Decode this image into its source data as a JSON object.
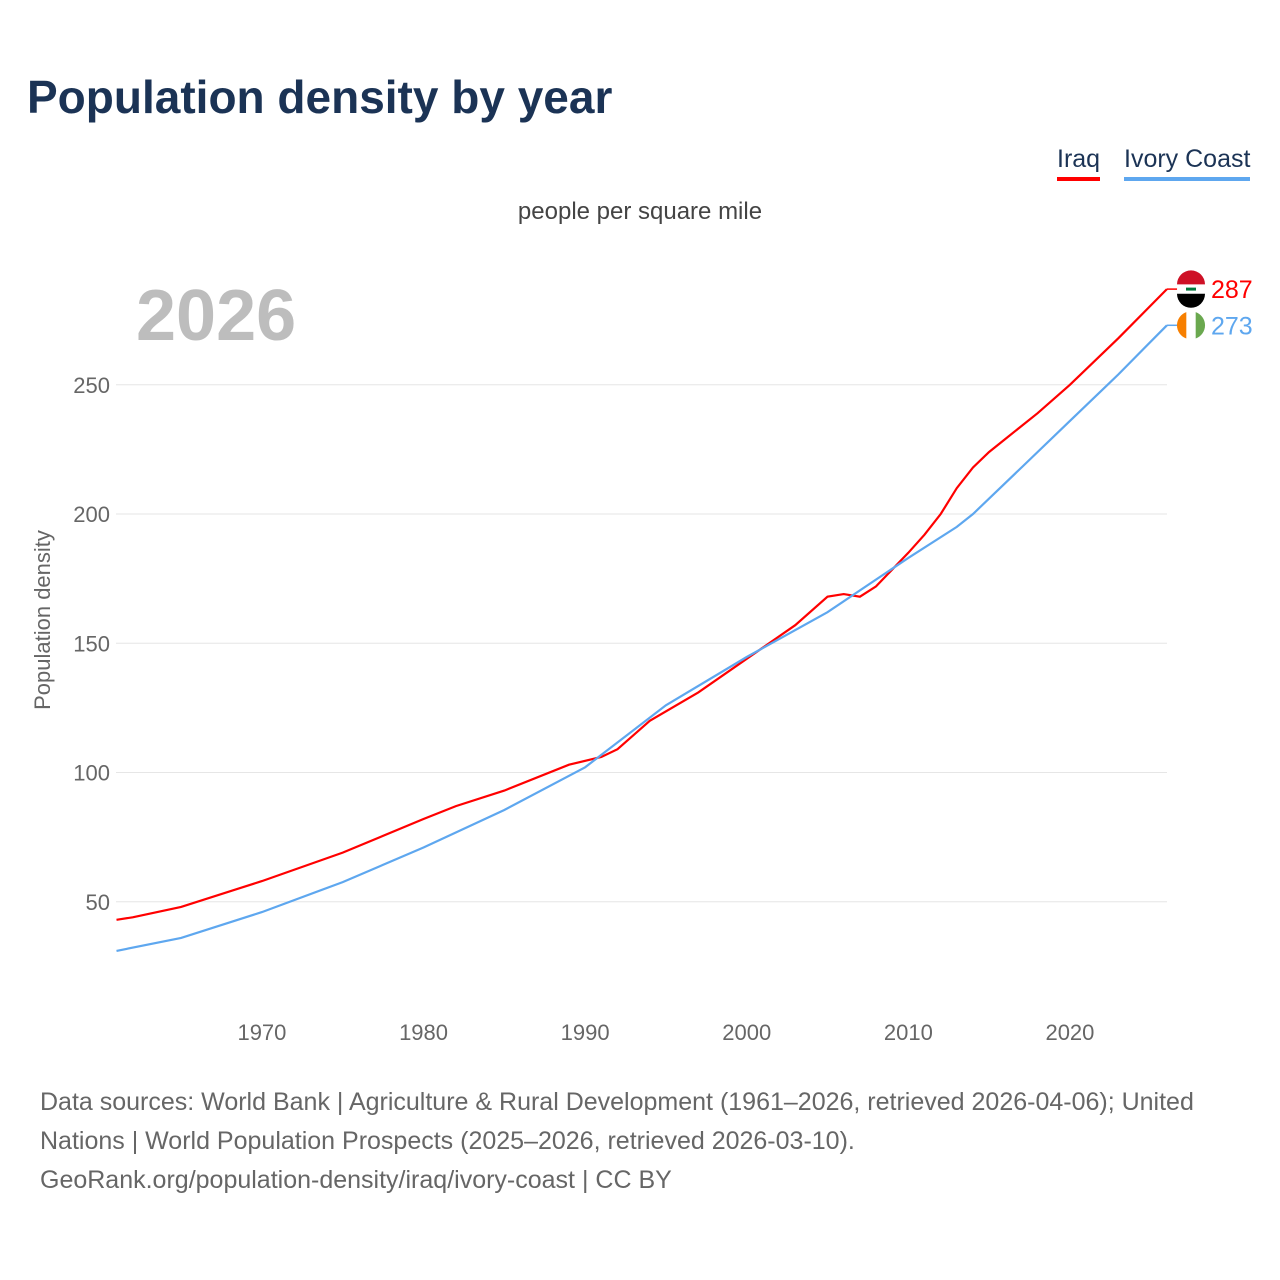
{
  "title": "Population density by year",
  "subtitle": "people per square mile",
  "current_year": "2026",
  "legend": [
    {
      "name": "Iraq",
      "color": "#ff0000"
    },
    {
      "name": "Ivory Coast",
      "color": "#5ea7ef"
    }
  ],
  "footer": {
    "line1": "Data sources: World Bank | Agriculture & Rural Development (1961–2026, retrieved 2026-04-06); United Nations | World Population Prospects (2025–2026, retrieved 2026-03-10).",
    "line2": "GeoRank.org/population-density/iraq/ivory-coast | CC BY"
  },
  "chart_data": {
    "type": "line",
    "title": "Population density by year",
    "ylabel": "Population density",
    "xlabel": "",
    "xlim": [
      1961,
      2026
    ],
    "ylim": [
      0,
      290
    ],
    "x_ticks": [
      1970,
      1980,
      1990,
      2000,
      2010,
      2020
    ],
    "y_ticks": [
      50,
      100,
      150,
      200,
      250
    ],
    "series": [
      {
        "name": "Iraq",
        "color": "#ff0000",
        "end_label": "287",
        "points": [
          [
            1961,
            43
          ],
          [
            1962,
            44
          ],
          [
            1965,
            48
          ],
          [
            1970,
            58
          ],
          [
            1975,
            69
          ],
          [
            1980,
            82
          ],
          [
            1982,
            87
          ],
          [
            1985,
            93
          ],
          [
            1989,
            103
          ],
          [
            1991,
            106
          ],
          [
            1992,
            109
          ],
          [
            1994,
            120
          ],
          [
            1997,
            131
          ],
          [
            2000,
            144
          ],
          [
            2003,
            157
          ],
          [
            2005,
            168
          ],
          [
            2006,
            169
          ],
          [
            2007,
            168
          ],
          [
            2008,
            172
          ],
          [
            2010,
            185
          ],
          [
            2011,
            192
          ],
          [
            2012,
            200
          ],
          [
            2013,
            210
          ],
          [
            2014,
            218
          ],
          [
            2015,
            224
          ],
          [
            2016,
            229
          ],
          [
            2018,
            239
          ],
          [
            2020,
            250
          ],
          [
            2023,
            268
          ],
          [
            2026,
            287
          ]
        ]
      },
      {
        "name": "Ivory Coast",
        "color": "#5ea7ef",
        "end_label": "273",
        "points": [
          [
            1961,
            31
          ],
          [
            1965,
            36
          ],
          [
            1970,
            46
          ],
          [
            1975,
            57.6
          ],
          [
            1980,
            71
          ],
          [
            1985,
            85.5
          ],
          [
            1990,
            102
          ],
          [
            1995,
            126
          ],
          [
            2000,
            144.7
          ],
          [
            2005,
            162
          ],
          [
            2010,
            183
          ],
          [
            2013,
            195
          ],
          [
            2014,
            200
          ],
          [
            2017,
            218
          ],
          [
            2020,
            236
          ],
          [
            2023,
            254
          ],
          [
            2026,
            273
          ]
        ]
      }
    ]
  }
}
